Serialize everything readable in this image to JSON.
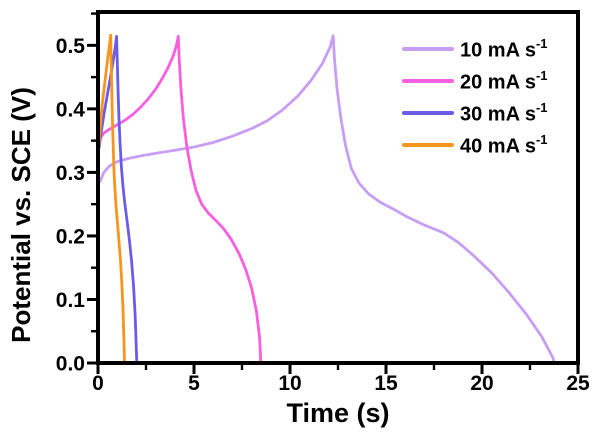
{
  "figure": {
    "background": "#ffffff",
    "text_color": "#000000"
  },
  "chart_data": {
    "type": "line",
    "title": "",
    "xlabel": "Time (s)",
    "ylabel": "Potential vs. SCE (V)",
    "xlim": [
      0,
      25
    ],
    "ylim": [
      0,
      0.55
    ],
    "grid": false,
    "legend_position": "top-right",
    "axis_color": "#000000",
    "x_major_ticks": [
      0,
      5,
      10,
      15,
      20,
      25
    ],
    "x_tick_labels": [
      "0",
      "5",
      "10",
      "15",
      "20",
      "25"
    ],
    "x_minor_ticks": [
      2.5,
      7.5,
      12.5,
      17.5,
      22.5
    ],
    "y_major_ticks": [
      0,
      0.1,
      0.2,
      0.3,
      0.4,
      0.5
    ],
    "y_tick_labels": [
      "0.0",
      "0.1",
      "0.2",
      "0.3",
      "0.4",
      "0.5"
    ],
    "y_minor_ticks": [
      0.05,
      0.15,
      0.25,
      0.35,
      0.45,
      0.55
    ],
    "series": [
      {
        "name": "10 mA s⁻¹",
        "label_base": "10 mA s",
        "label_exp": "-1",
        "color": "#c89ef4",
        "points": [
          [
            0.12,
            0.286
          ],
          [
            0.3,
            0.3
          ],
          [
            0.6,
            0.31
          ],
          [
            1.0,
            0.317
          ],
          [
            1.6,
            0.322
          ],
          [
            2.4,
            0.327
          ],
          [
            3.2,
            0.331
          ],
          [
            4.0,
            0.335
          ],
          [
            5.0,
            0.34
          ],
          [
            6.0,
            0.347
          ],
          [
            7.0,
            0.357
          ],
          [
            8.0,
            0.369
          ],
          [
            8.8,
            0.381
          ],
          [
            9.6,
            0.398
          ],
          [
            10.4,
            0.42
          ],
          [
            11.1,
            0.445
          ],
          [
            11.7,
            0.472
          ],
          [
            12.1,
            0.498
          ],
          [
            12.25,
            0.515
          ],
          [
            12.32,
            0.478
          ],
          [
            12.45,
            0.432
          ],
          [
            12.65,
            0.385
          ],
          [
            12.9,
            0.341
          ],
          [
            13.2,
            0.306
          ],
          [
            13.6,
            0.283
          ],
          [
            14.1,
            0.266
          ],
          [
            14.7,
            0.253
          ],
          [
            15.4,
            0.242
          ],
          [
            16.1,
            0.23
          ],
          [
            17.0,
            0.217
          ],
          [
            18.0,
            0.205
          ],
          [
            18.8,
            0.189
          ],
          [
            19.6,
            0.168
          ],
          [
            20.5,
            0.142
          ],
          [
            21.4,
            0.111
          ],
          [
            22.3,
            0.077
          ],
          [
            23.1,
            0.042
          ],
          [
            23.7,
            0.008
          ],
          [
            23.75,
            0.0
          ]
        ]
      },
      {
        "name": "20 mA s⁻¹",
        "label_base": "20 mA s",
        "label_exp": "-1",
        "color": "#f85fe0",
        "points": [
          [
            0.05,
            0.342
          ],
          [
            0.12,
            0.354
          ],
          [
            0.3,
            0.362
          ],
          [
            0.6,
            0.368
          ],
          [
            1.0,
            0.375
          ],
          [
            1.4,
            0.382
          ],
          [
            1.8,
            0.391
          ],
          [
            2.2,
            0.402
          ],
          [
            2.6,
            0.415
          ],
          [
            3.0,
            0.431
          ],
          [
            3.35,
            0.448
          ],
          [
            3.65,
            0.465
          ],
          [
            3.9,
            0.482
          ],
          [
            4.08,
            0.499
          ],
          [
            4.18,
            0.514
          ],
          [
            4.24,
            0.472
          ],
          [
            4.33,
            0.428
          ],
          [
            4.45,
            0.385
          ],
          [
            4.62,
            0.342
          ],
          [
            4.85,
            0.303
          ],
          [
            5.1,
            0.272
          ],
          [
            5.4,
            0.25
          ],
          [
            5.75,
            0.236
          ],
          [
            6.15,
            0.224
          ],
          [
            6.55,
            0.211
          ],
          [
            6.95,
            0.194
          ],
          [
            7.35,
            0.172
          ],
          [
            7.7,
            0.147
          ],
          [
            8.0,
            0.118
          ],
          [
            8.25,
            0.082
          ],
          [
            8.42,
            0.038
          ],
          [
            8.48,
            0.0
          ]
        ]
      },
      {
        "name": "30 mA s⁻¹",
        "label_base": "30 mA s",
        "label_exp": "-1",
        "color": "#6a5ce8",
        "points": [
          [
            0.07,
            0.34
          ],
          [
            0.13,
            0.356
          ],
          [
            0.22,
            0.374
          ],
          [
            0.32,
            0.393
          ],
          [
            0.44,
            0.414
          ],
          [
            0.56,
            0.435
          ],
          [
            0.68,
            0.456
          ],
          [
            0.79,
            0.476
          ],
          [
            0.89,
            0.495
          ],
          [
            0.97,
            0.514
          ],
          [
            1.0,
            0.478
          ],
          [
            1.04,
            0.432
          ],
          [
            1.09,
            0.387
          ],
          [
            1.15,
            0.345
          ],
          [
            1.22,
            0.308
          ],
          [
            1.3,
            0.278
          ],
          [
            1.4,
            0.25
          ],
          [
            1.52,
            0.222
          ],
          [
            1.64,
            0.192
          ],
          [
            1.75,
            0.16
          ],
          [
            1.85,
            0.122
          ],
          [
            1.93,
            0.077
          ],
          [
            1.99,
            0.028
          ],
          [
            2.02,
            0.0
          ]
        ]
      },
      {
        "name": "40 mA s⁻¹",
        "label_base": "40 mA s",
        "label_exp": "-1",
        "color": "#f8951f",
        "points": [
          [
            0.05,
            0.342
          ],
          [
            0.1,
            0.364
          ],
          [
            0.16,
            0.387
          ],
          [
            0.23,
            0.409
          ],
          [
            0.31,
            0.431
          ],
          [
            0.4,
            0.453
          ],
          [
            0.49,
            0.475
          ],
          [
            0.58,
            0.496
          ],
          [
            0.66,
            0.516
          ],
          [
            0.69,
            0.474
          ],
          [
            0.72,
            0.428
          ],
          [
            0.75,
            0.384
          ],
          [
            0.79,
            0.342
          ],
          [
            0.83,
            0.305
          ],
          [
            0.88,
            0.274
          ],
          [
            0.94,
            0.248
          ],
          [
            1.01,
            0.222
          ],
          [
            1.09,
            0.193
          ],
          [
            1.17,
            0.161
          ],
          [
            1.24,
            0.126
          ],
          [
            1.3,
            0.085
          ],
          [
            1.35,
            0.038
          ],
          [
            1.38,
            0.0
          ]
        ]
      }
    ]
  }
}
